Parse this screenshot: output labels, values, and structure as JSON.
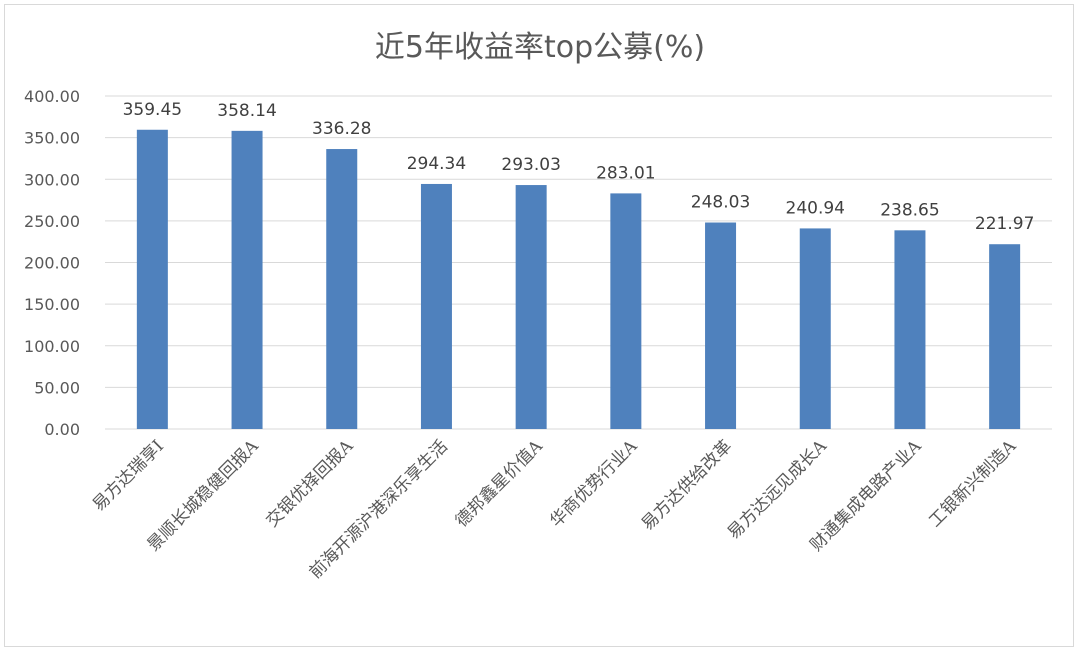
{
  "chart_data": {
    "type": "bar",
    "title": "近5年收益率top公募(%)",
    "xlabel": "",
    "ylabel": "",
    "ylim": [
      0,
      400
    ],
    "y_ticks": [
      "0.00",
      "50.00",
      "100.00",
      "150.00",
      "200.00",
      "250.00",
      "300.00",
      "350.00",
      "400.00"
    ],
    "y_tick_values": [
      0,
      50,
      100,
      150,
      200,
      250,
      300,
      350,
      400
    ],
    "grid": true,
    "legend": "none",
    "bar_color": "#4f81bd",
    "categories": [
      "易方达瑞享I",
      "景顺长城稳健回报A",
      "交银优择回报A",
      "前海开源沪港深乐享生活",
      "德邦鑫星价值A",
      "华商优势行业A",
      "易方达供给改革",
      "易方达远见成长A",
      "财通集成电路产业A",
      "工银新兴制造A"
    ],
    "values": [
      359.45,
      358.14,
      336.28,
      294.34,
      293.03,
      283.01,
      248.03,
      240.94,
      238.65,
      221.97
    ],
    "data_labels": [
      "359.45",
      "358.14",
      "336.28",
      "294.34",
      "293.03",
      "283.01",
      "248.03",
      "240.94",
      "238.65",
      "221.97"
    ]
  }
}
